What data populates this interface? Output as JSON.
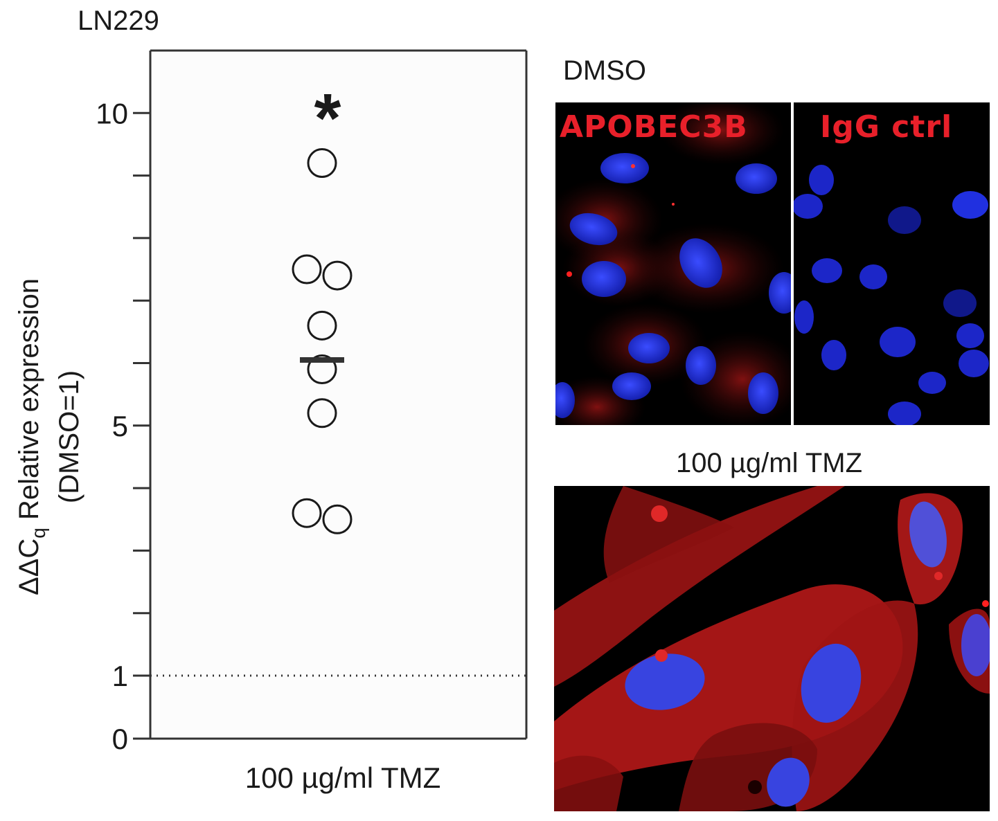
{
  "chart_data": {
    "type": "scatter",
    "title": "LN229",
    "xlabel": "100 µg/ml TMZ",
    "ylabel_main": "ΔΔC",
    "ylabel_sub": "q",
    "ylabel_rest": " Relative expression",
    "ylabel_line2": "(DMSO=1)",
    "ylim": [
      0,
      11
    ],
    "y_ticks_major": [
      0,
      1,
      5,
      10
    ],
    "y_ticks_minor": [
      2,
      3,
      4,
      6,
      7,
      8,
      9
    ],
    "points": [
      {
        "jitter": 0,
        "y": 9.2
      },
      {
        "jitter": -1,
        "y": 7.5
      },
      {
        "jitter": 1,
        "y": 7.4
      },
      {
        "jitter": 0,
        "y": 6.6
      },
      {
        "jitter": 0,
        "y": 5.9
      },
      {
        "jitter": 0,
        "y": 5.2
      },
      {
        "jitter": -1,
        "y": 3.6
      },
      {
        "jitter": 1,
        "y": 3.5
      }
    ],
    "mean": 6.05,
    "reference_line": 1,
    "significance": "*",
    "grid": false,
    "marker_color": "#1a1a1a"
  },
  "images": {
    "dmso_title": "DMSO",
    "apobec_label": "APOBEC3B",
    "igg_label": "IgG ctrl",
    "tmz_title": "100 µg/ml TMZ",
    "stain_red": "#c01818",
    "stain_blue": "#1e2ee0"
  }
}
